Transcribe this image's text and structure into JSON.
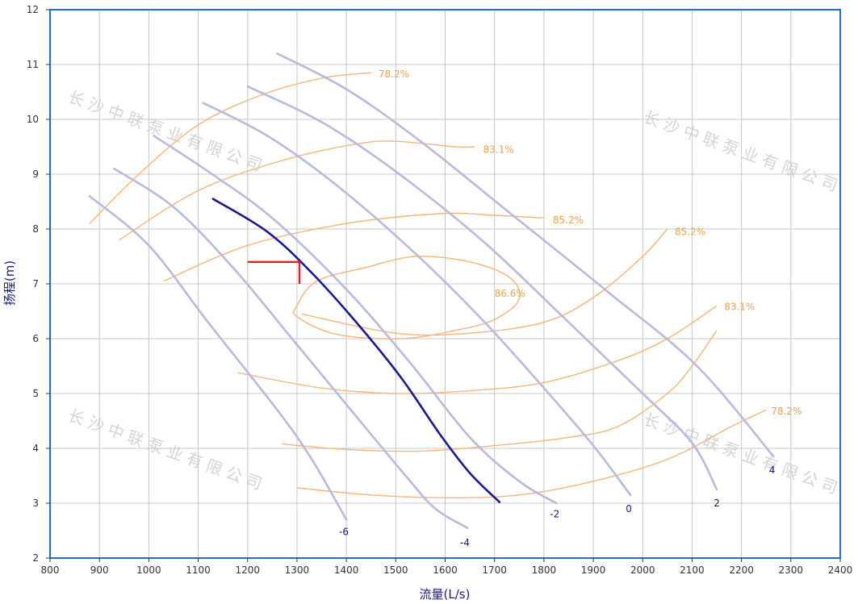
{
  "colors": {
    "frame": "#1f6fd0",
    "grid": "#c8c8c8",
    "axis_text": "#333333",
    "axis_title": "#1a1a7a",
    "blade_curve": "#b9b9dc",
    "operating_curve": "#1a1a8c",
    "efficiency_curve": "#f5b47a",
    "efficiency_label": "#f0a050",
    "curve_label": "#1a1a7a",
    "marker": "#e81e1e",
    "watermark": "#d4d4d4"
  },
  "watermark_text": "长沙中联泵业有限公司",
  "chart_data": {
    "type": "line",
    "xlabel": "流量(L/s)",
    "ylabel": "扬程(m)",
    "xlim": [
      800,
      2400
    ],
    "ylim": [
      2,
      12
    ],
    "x_ticks": [
      800,
      900,
      1000,
      1100,
      1200,
      1300,
      1400,
      1500,
      1600,
      1700,
      1800,
      1900,
      2000,
      2100,
      2200,
      2300,
      2400
    ],
    "y_ticks": [
      2,
      3,
      4,
      5,
      6,
      7,
      8,
      9,
      10,
      11,
      12
    ],
    "grid": true,
    "blade_angle_curves": [
      {
        "name": "-6",
        "points": [
          [
            880,
            8.6
          ],
          [
            1000,
            7.7
          ],
          [
            1120,
            6.3
          ],
          [
            1260,
            4.7
          ],
          [
            1330,
            3.8
          ],
          [
            1400,
            2.7
          ]
        ],
        "label_at": [
          1395,
          2.48
        ]
      },
      {
        "name": "-4",
        "points": [
          [
            930,
            9.1
          ],
          [
            1050,
            8.4
          ],
          [
            1170,
            7.3
          ],
          [
            1290,
            6.0
          ],
          [
            1400,
            4.8
          ],
          [
            1520,
            3.5
          ],
          [
            1580,
            2.9
          ],
          [
            1645,
            2.55
          ]
        ],
        "label_at": [
          1640,
          2.28
        ]
      },
      {
        "name": "-2",
        "points": [
          [
            1010,
            9.7
          ],
          [
            1120,
            9.05
          ],
          [
            1250,
            8.2
          ],
          [
            1400,
            6.9
          ],
          [
            1530,
            5.55
          ],
          [
            1650,
            4.2
          ],
          [
            1750,
            3.4
          ],
          [
            1825,
            3.0
          ]
        ],
        "label_at": [
          1822,
          2.8
        ]
      },
      {
        "name": "0",
        "points": [
          [
            1110,
            10.3
          ],
          [
            1240,
            9.7
          ],
          [
            1380,
            8.8
          ],
          [
            1540,
            7.55
          ],
          [
            1680,
            6.3
          ],
          [
            1800,
            5.1
          ],
          [
            1900,
            4.05
          ],
          [
            1975,
            3.15
          ]
        ],
        "label_at": [
          1972,
          2.9
        ]
      },
      {
        "name": "2",
        "points": [
          [
            1200,
            10.6
          ],
          [
            1350,
            9.95
          ],
          [
            1500,
            9.05
          ],
          [
            1680,
            7.75
          ],
          [
            1850,
            6.3
          ],
          [
            2000,
            5.0
          ],
          [
            2100,
            4.1
          ],
          [
            2150,
            3.25
          ]
        ],
        "label_at": [
          2150,
          3.0
        ]
      },
      {
        "name": "4",
        "points": [
          [
            1260,
            11.2
          ],
          [
            1400,
            10.55
          ],
          [
            1550,
            9.6
          ],
          [
            1730,
            8.3
          ],
          [
            1930,
            6.85
          ],
          [
            2110,
            5.5
          ],
          [
            2265,
            3.85
          ]
        ],
        "label_at": [
          2262,
          3.6
        ]
      }
    ],
    "operating_curve": {
      "points": [
        [
          1130,
          8.55
        ],
        [
          1240,
          7.95
        ],
        [
          1330,
          7.2
        ],
        [
          1420,
          6.3
        ],
        [
          1510,
          5.3
        ],
        [
          1590,
          4.25
        ],
        [
          1650,
          3.55
        ],
        [
          1710,
          3.02
        ]
      ]
    },
    "duty_point": {
      "x": 1305,
      "y": 7.4
    },
    "efficiency_curves": [
      {
        "label": "78.2%",
        "points": [
          [
            880,
            8.1
          ],
          [
            980,
            9.0
          ],
          [
            1100,
            9.9
          ],
          [
            1230,
            10.45
          ],
          [
            1350,
            10.75
          ],
          [
            1450,
            10.85
          ]
        ],
        "label_at": [
          1465,
          10.82
        ]
      },
      {
        "label": "83.1%",
        "points": [
          [
            940,
            7.8
          ],
          [
            1100,
            8.7
          ],
          [
            1270,
            9.25
          ],
          [
            1420,
            9.55
          ],
          [
            1500,
            9.6
          ],
          [
            1620,
            9.5
          ],
          [
            1660,
            9.5
          ]
        ],
        "label_at": [
          1677,
          9.45
        ]
      },
      {
        "label": "85.2%",
        "points": [
          [
            1030,
            7.05
          ],
          [
            1200,
            7.7
          ],
          [
            1400,
            8.1
          ],
          [
            1590,
            8.28
          ],
          [
            1700,
            8.25
          ],
          [
            1800,
            8.2
          ]
        ],
        "label_at": [
          1818,
          8.16
        ]
      },
      {
        "label": "86.6%",
        "closed": true,
        "points": [
          [
            1300,
            6.6
          ],
          [
            1340,
            7.05
          ],
          [
            1440,
            7.3
          ],
          [
            1540,
            7.5
          ],
          [
            1650,
            7.4
          ],
          [
            1730,
            7.12
          ],
          [
            1750,
            6.72
          ],
          [
            1700,
            6.35
          ],
          [
            1620,
            6.15
          ],
          [
            1510,
            6.0
          ],
          [
            1380,
            6.08
          ],
          [
            1300,
            6.4
          ]
        ],
        "label_at": [
          1700,
          6.82
        ]
      },
      {
        "label": "85.2%",
        "points": [
          [
            1310,
            6.45
          ],
          [
            1500,
            6.1
          ],
          [
            1650,
            6.1
          ],
          [
            1800,
            6.3
          ],
          [
            1900,
            6.75
          ],
          [
            2000,
            7.5
          ],
          [
            2050,
            8.0
          ]
        ],
        "label_at": [
          2065,
          7.95
        ]
      },
      {
        "label": "83.1%",
        "points": [
          [
            1180,
            5.38
          ],
          [
            1350,
            5.1
          ],
          [
            1500,
            5.0
          ],
          [
            1650,
            5.05
          ],
          [
            1800,
            5.2
          ],
          [
            1950,
            5.6
          ],
          [
            2050,
            6.0
          ],
          [
            2150,
            6.6
          ]
        ],
        "label_at": [
          2165,
          6.58
        ]
      },
      {
        "label": "83.1%",
        "points": [
          [
            1270,
            4.08
          ],
          [
            1400,
            3.98
          ],
          [
            1550,
            3.95
          ],
          [
            1700,
            4.05
          ],
          [
            1850,
            4.2
          ],
          [
            1950,
            4.4
          ],
          [
            2050,
            5.0
          ],
          [
            2100,
            5.5
          ],
          [
            2150,
            6.15
          ]
        ],
        "label_at": null
      },
      {
        "label": "78.2%",
        "points": [
          [
            1300,
            3.28
          ],
          [
            1450,
            3.15
          ],
          [
            1600,
            3.1
          ],
          [
            1750,
            3.15
          ],
          [
            1900,
            3.4
          ],
          [
            2050,
            3.8
          ],
          [
            2180,
            4.4
          ],
          [
            2250,
            4.7
          ]
        ],
        "label_at": [
          2260,
          4.68
        ]
      }
    ]
  }
}
